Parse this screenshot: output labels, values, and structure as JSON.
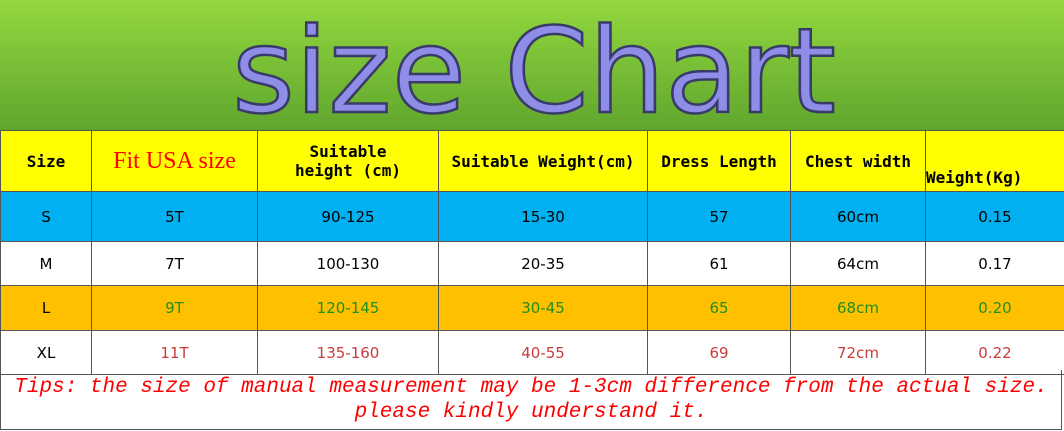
{
  "title": "size Chart",
  "table": {
    "headers": [
      "Size",
      "Fit USA size",
      "Suitable height (cm)",
      "Suitable Weight(cm)",
      "Dress Length",
      "Chest width",
      "Weight(Kg)"
    ],
    "rows": [
      [
        "S",
        "5T",
        "90-125",
        "15-30",
        "57",
        "60cm",
        "0.15"
      ],
      [
        "M",
        "7T",
        "100-130",
        "20-35",
        "61",
        "64cm",
        "0.17"
      ],
      [
        "L",
        "9T",
        "120-145",
        "30-45",
        "65",
        "68cm",
        "0.20"
      ],
      [
        "XL",
        "11T",
        "135-160",
        "40-55",
        "69",
        "72cm",
        "0.22"
      ]
    ]
  },
  "tips": [
    "Tips: the size of manual measurement may be 1-3cm difference from the actual size.",
    "please kindly understand it."
  ]
}
